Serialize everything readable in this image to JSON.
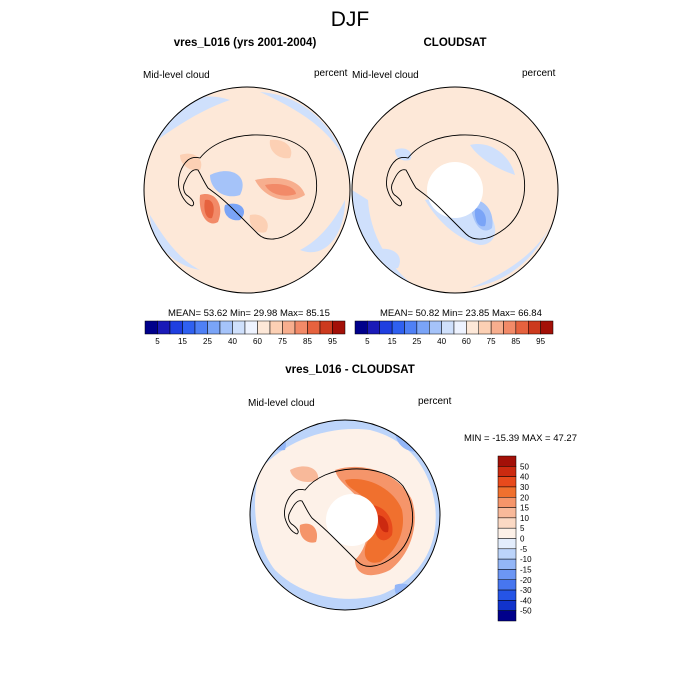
{
  "figure": {
    "title": "DJF"
  },
  "panels": {
    "model": {
      "title": "vres_L016 (yrs 2001-2004)",
      "left_label": "Mid-level cloud",
      "right_label": "percent",
      "stats": "MEAN=  53.62  Min=  29.98  Max=  85.15"
    },
    "obs": {
      "title": "CLOUDSAT",
      "left_label": "Mid-level cloud",
      "right_label": "percent",
      "stats": "MEAN=  50.82  Min=  23.85  Max=  66.84"
    },
    "diff": {
      "title": "vres_L016 - CLOUDSAT",
      "left_label": "Mid-level cloud",
      "right_label": "percent",
      "stats": "MIN = -15.39 MAX =  47.27"
    }
  },
  "chart_data": [
    {
      "type": "heatmap",
      "title": "vres_L016 (yrs 2001-2004)",
      "variable": "Mid-level cloud",
      "units": "percent",
      "projection": "south polar stereographic",
      "mean": 53.62,
      "min": 29.98,
      "max": 85.15,
      "colorbar_levels": [
        "5",
        "10",
        "15",
        "20",
        "25",
        "30",
        "40",
        "50",
        "60",
        "70",
        "75",
        "80",
        "85",
        "90",
        "95"
      ],
      "colorbar_labels": [
        "5",
        "15",
        "25",
        "40",
        "60",
        "75",
        "85",
        "95"
      ],
      "colorbar_colors": [
        "#00008b",
        "#1a1ab8",
        "#1f3fe0",
        "#2f60f0",
        "#4f80f5",
        "#7aa4f7",
        "#a5c3f9",
        "#cfe0fc",
        "#eef3ff",
        "#fde8d8",
        "#fcd0b4",
        "#f7ae8e",
        "#f28a68",
        "#e6623e",
        "#cc3a1e",
        "#a31008"
      ]
    },
    {
      "type": "heatmap",
      "title": "CLOUDSAT",
      "variable": "Mid-level cloud",
      "units": "percent",
      "projection": "south polar stereographic",
      "mean": 50.82,
      "min": 23.85,
      "max": 66.84,
      "colorbar_levels": [
        "5",
        "10",
        "15",
        "20",
        "25",
        "30",
        "40",
        "50",
        "60",
        "70",
        "75",
        "80",
        "85",
        "90",
        "95"
      ],
      "colorbar_labels": [
        "5",
        "15",
        "25",
        "40",
        "60",
        "75",
        "85",
        "95"
      ],
      "colorbar_colors": [
        "#00008b",
        "#1a1ab8",
        "#1f3fe0",
        "#2f60f0",
        "#4f80f5",
        "#7aa4f7",
        "#a5c3f9",
        "#cfe0fc",
        "#eef3ff",
        "#fde8d8",
        "#fcd0b4",
        "#f7ae8e",
        "#f28a68",
        "#e6623e",
        "#cc3a1e",
        "#a31008"
      ]
    },
    {
      "type": "heatmap",
      "title": "vres_L016 - CLOUDSAT",
      "variable": "Mid-level cloud",
      "units": "percent",
      "projection": "south polar stereographic",
      "min": -15.39,
      "max": 47.27,
      "colorbar_labels": [
        "50",
        "40",
        "30",
        "20",
        "15",
        "10",
        "5",
        "0",
        "-5",
        "-10",
        "-15",
        "-20",
        "-30",
        "-40",
        "-50"
      ],
      "colorbar_colors": [
        "#a31008",
        "#cc2a10",
        "#e84a1c",
        "#f0702e",
        "#f5956a",
        "#f8b99a",
        "#fbd9c4",
        "#fdf1e8",
        "#e3edfc",
        "#bcd4fa",
        "#93b6f7",
        "#6c96f4",
        "#4776ef",
        "#2554e6",
        "#1133cc",
        "#00008b"
      ]
    }
  ]
}
